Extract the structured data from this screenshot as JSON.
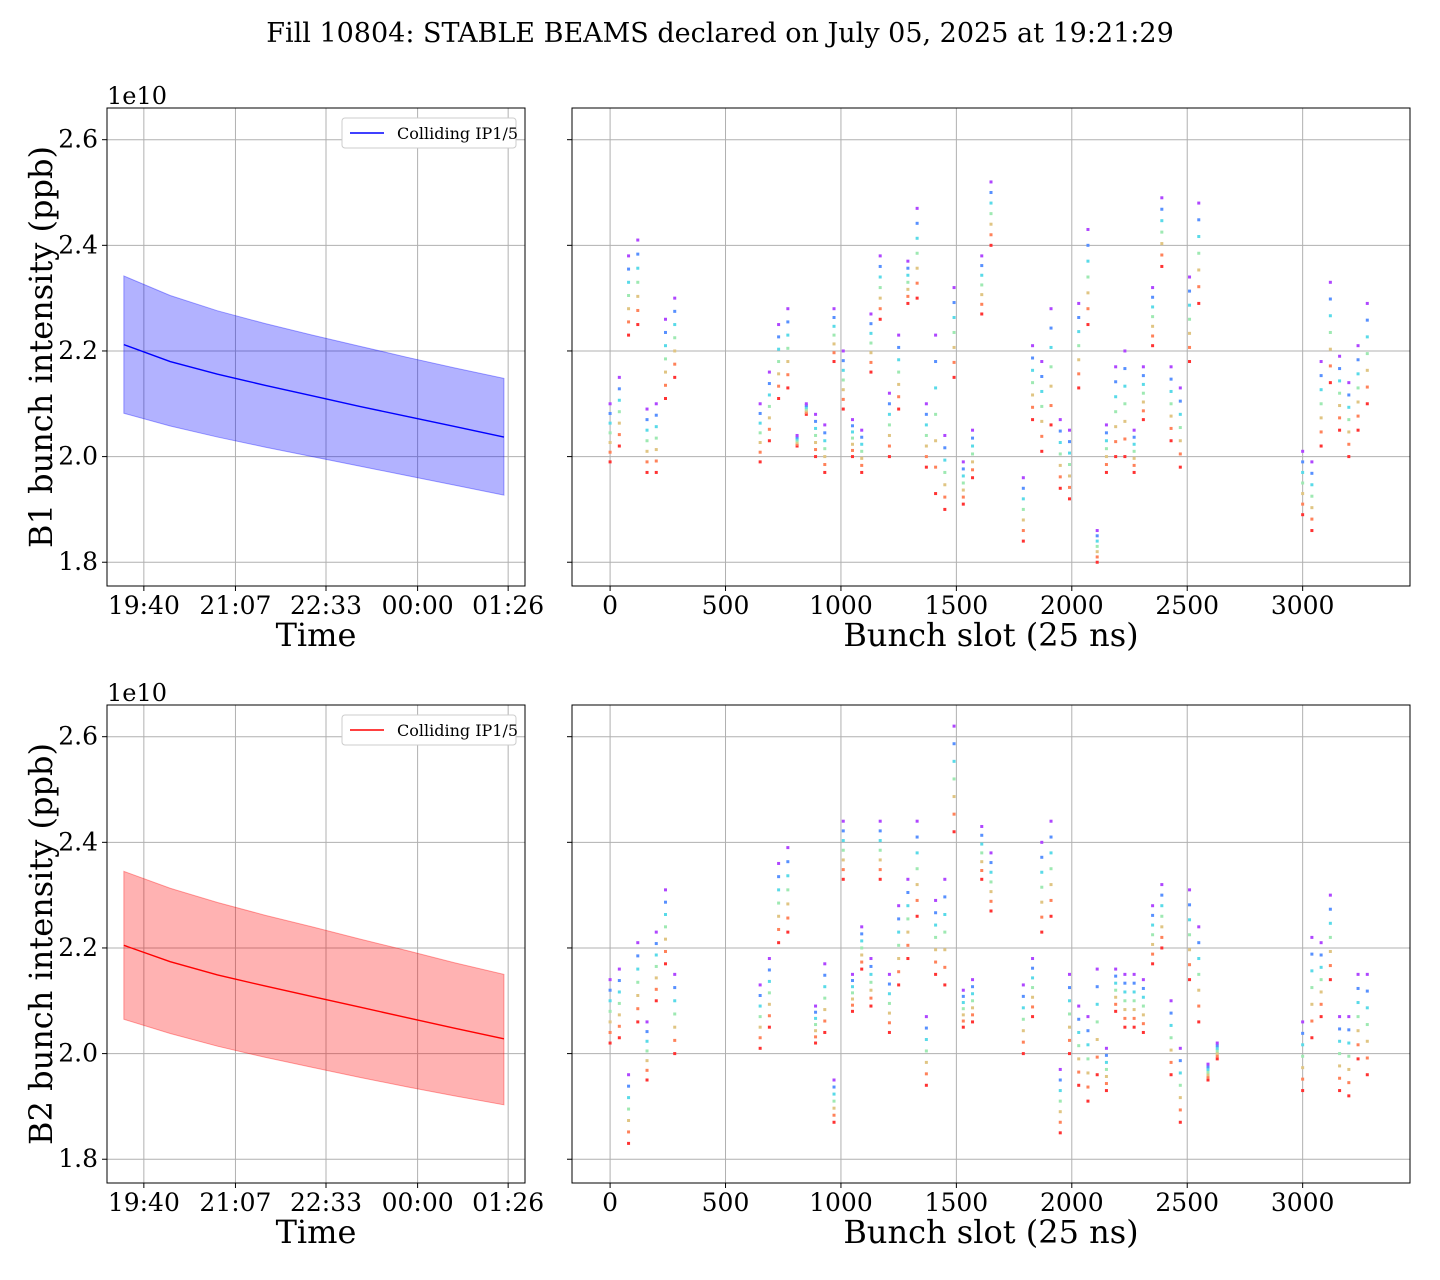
{
  "suptitle": "Fill 10804: STABLE BEAMS declared on July 05, 2025 at 19:21:29",
  "colors": {
    "b1": "#0000ff",
    "b2": "#ff0000",
    "grid": "#b0b0b0"
  },
  "chart_data": [
    {
      "type": "area",
      "id": "b1-time",
      "xlabel": "Time",
      "ylabel": "B1 bunch intensity (ppb)",
      "offset_text": "1e10",
      "ylim": [
        1.755,
        2.66
      ],
      "xlim": [
        "19:05",
        "01:42"
      ],
      "xticks": [
        "19:40",
        "21:07",
        "22:33",
        "00:00",
        "01:26"
      ],
      "yticks": [
        "1.8",
        "2.0",
        "2.2",
        "2.4",
        "2.6"
      ],
      "grid": true,
      "legend": {
        "position": "top-right",
        "entries": [
          "Colliding IP1/5"
        ]
      },
      "series": [
        {
          "name": "Colliding IP1/5",
          "color": "#0000ff",
          "x": [
            "19:21",
            "20:05",
            "20:50",
            "21:35",
            "22:20",
            "23:05",
            "23:50",
            "00:35",
            "01:22"
          ],
          "mean": [
            2.212,
            2.18,
            2.156,
            2.135,
            2.115,
            2.095,
            2.076,
            2.057,
            2.037
          ],
          "upper": [
            2.342,
            2.305,
            2.276,
            2.252,
            2.23,
            2.209,
            2.188,
            2.168,
            2.148
          ],
          "lower": [
            2.082,
            2.058,
            2.037,
            2.018,
            2.0,
            1.982,
            1.964,
            1.946,
            1.927
          ]
        }
      ]
    },
    {
      "type": "scatter",
      "id": "b1-slots",
      "xlabel": "Bunch slot (25 ns)",
      "xlim": [
        -165,
        3465
      ],
      "ylim": [
        1.755,
        2.66
      ],
      "xticks": [
        "0",
        "500",
        "1000",
        "1500",
        "2000",
        "2500",
        "3000"
      ],
      "grid": true,
      "trains": [
        [
          0,
          1.99,
          2.1
        ],
        [
          40,
          2.02,
          2.15
        ],
        [
          80,
          2.23,
          2.38
        ],
        [
          120,
          2.25,
          2.41
        ],
        [
          160,
          1.97,
          2.09
        ],
        [
          200,
          1.97,
          2.1
        ],
        [
          240,
          2.11,
          2.26
        ],
        [
          280,
          2.15,
          2.3
        ],
        [
          650,
          1.99,
          2.1
        ],
        [
          690,
          2.03,
          2.16
        ],
        [
          730,
          2.11,
          2.25
        ],
        [
          770,
          2.13,
          2.28
        ],
        [
          810,
          2.02,
          2.04
        ],
        [
          850,
          2.08,
          2.1
        ],
        [
          890,
          2.0,
          2.08
        ],
        [
          930,
          1.97,
          2.06
        ],
        [
          970,
          2.18,
          2.28
        ],
        [
          1010,
          2.09,
          2.2
        ],
        [
          1050,
          2.0,
          2.07
        ],
        [
          1090,
          1.97,
          2.05
        ],
        [
          1130,
          2.16,
          2.27
        ],
        [
          1170,
          2.26,
          2.38
        ],
        [
          1210,
          2.0,
          2.12
        ],
        [
          1250,
          2.09,
          2.23
        ],
        [
          1290,
          2.29,
          2.37
        ],
        [
          1330,
          2.3,
          2.47
        ],
        [
          1370,
          1.98,
          2.1
        ],
        [
          1410,
          1.93,
          2.23
        ],
        [
          1450,
          1.9,
          2.04
        ],
        [
          1490,
          2.15,
          2.32
        ],
        [
          1530,
          1.91,
          1.99
        ],
        [
          1570,
          1.96,
          2.05
        ],
        [
          1610,
          2.27,
          2.38
        ],
        [
          1650,
          2.4,
          2.52
        ],
        [
          1790,
          1.84,
          1.96
        ],
        [
          1830,
          2.07,
          2.21
        ],
        [
          1870,
          2.01,
          2.18
        ],
        [
          1910,
          2.06,
          2.28
        ],
        [
          1950,
          1.94,
          2.07
        ],
        [
          1990,
          1.92,
          2.05
        ],
        [
          2030,
          2.13,
          2.29
        ],
        [
          2070,
          2.25,
          2.43
        ],
        [
          2110,
          1.8,
          1.86
        ],
        [
          2150,
          1.97,
          2.06
        ],
        [
          2190,
          2.0,
          2.17
        ],
        [
          2230,
          2.0,
          2.2
        ],
        [
          2270,
          1.97,
          2.05
        ],
        [
          2310,
          2.07,
          2.17
        ],
        [
          2350,
          2.21,
          2.32
        ],
        [
          2390,
          2.36,
          2.49
        ],
        [
          2430,
          2.03,
          2.17
        ],
        [
          2470,
          1.98,
          2.13
        ],
        [
          2510,
          2.18,
          2.34
        ],
        [
          2550,
          2.29,
          2.48
        ],
        [
          3000,
          1.89,
          2.01
        ],
        [
          3040,
          1.86,
          1.99
        ],
        [
          3080,
          2.02,
          2.18
        ],
        [
          3120,
          2.14,
          2.33
        ],
        [
          3160,
          2.05,
          2.19
        ],
        [
          3200,
          2.0,
          2.14
        ],
        [
          3240,
          2.05,
          2.21
        ],
        [
          3280,
          2.1,
          2.29
        ]
      ]
    },
    {
      "type": "area",
      "id": "b2-time",
      "xlabel": "Time",
      "ylabel": "B2 bunch intensity (ppb)",
      "offset_text": "1e10",
      "ylim": [
        1.755,
        2.66
      ],
      "xlim": [
        "19:05",
        "01:42"
      ],
      "xticks": [
        "19:40",
        "21:07",
        "22:33",
        "00:00",
        "01:26"
      ],
      "yticks": [
        "1.8",
        "2.0",
        "2.2",
        "2.4",
        "2.6"
      ],
      "grid": true,
      "legend": {
        "position": "top-right",
        "entries": [
          "Colliding IP1/5"
        ]
      },
      "series": [
        {
          "name": "Colliding IP1/5",
          "color": "#ff0000",
          "x": [
            "19:21",
            "20:05",
            "20:50",
            "21:35",
            "22:20",
            "23:05",
            "23:50",
            "00:35",
            "01:22"
          ],
          "mean": [
            2.205,
            2.174,
            2.149,
            2.128,
            2.108,
            2.088,
            2.068,
            2.048,
            2.028
          ],
          "upper": [
            2.345,
            2.313,
            2.286,
            2.262,
            2.24,
            2.217,
            2.195,
            2.172,
            2.15
          ],
          "lower": [
            2.065,
            2.038,
            2.014,
            1.993,
            1.974,
            1.955,
            1.937,
            1.92,
            1.903
          ]
        }
      ]
    },
    {
      "type": "scatter",
      "id": "b2-slots",
      "xlabel": "Bunch slot (25 ns)",
      "xlim": [
        -165,
        3465
      ],
      "ylim": [
        1.755,
        2.66
      ],
      "xticks": [
        "0",
        "500",
        "1000",
        "1500",
        "2000",
        "2500",
        "3000"
      ],
      "grid": true,
      "trains": [
        [
          0,
          2.02,
          2.14
        ],
        [
          40,
          2.03,
          2.16
        ],
        [
          80,
          1.83,
          1.96
        ],
        [
          120,
          2.06,
          2.21
        ],
        [
          160,
          1.95,
          2.06
        ],
        [
          200,
          2.1,
          2.23
        ],
        [
          240,
          2.17,
          2.31
        ],
        [
          280,
          2.0,
          2.15
        ],
        [
          650,
          2.01,
          2.13
        ],
        [
          690,
          2.05,
          2.18
        ],
        [
          730,
          2.21,
          2.36
        ],
        [
          770,
          2.23,
          2.39
        ],
        [
          890,
          2.02,
          2.09
        ],
        [
          930,
          2.04,
          2.17
        ],
        [
          970,
          1.87,
          1.95
        ],
        [
          1010,
          2.33,
          2.44
        ],
        [
          1050,
          2.08,
          2.15
        ],
        [
          1090,
          2.16,
          2.24
        ],
        [
          1130,
          2.09,
          2.18
        ],
        [
          1170,
          2.33,
          2.44
        ],
        [
          1210,
          2.04,
          2.15
        ],
        [
          1250,
          2.13,
          2.28
        ],
        [
          1290,
          2.18,
          2.33
        ],
        [
          1330,
          2.26,
          2.44
        ],
        [
          1370,
          1.94,
          2.07
        ],
        [
          1410,
          2.15,
          2.29
        ],
        [
          1450,
          2.13,
          2.33
        ],
        [
          1490,
          2.42,
          2.62
        ],
        [
          1530,
          2.05,
          2.12
        ],
        [
          1570,
          2.06,
          2.14
        ],
        [
          1610,
          2.33,
          2.43
        ],
        [
          1650,
          2.27,
          2.38
        ],
        [
          1790,
          2.0,
          2.13
        ],
        [
          1830,
          2.07,
          2.18
        ],
        [
          1870,
          2.23,
          2.4
        ],
        [
          1910,
          2.26,
          2.44
        ],
        [
          1950,
          1.85,
          1.97
        ],
        [
          1990,
          2.0,
          2.15
        ],
        [
          2030,
          1.94,
          2.09
        ],
        [
          2070,
          1.91,
          2.07
        ],
        [
          2110,
          1.96,
          2.16
        ],
        [
          2150,
          1.93,
          2.01
        ],
        [
          2190,
          2.08,
          2.16
        ],
        [
          2230,
          2.05,
          2.15
        ],
        [
          2270,
          2.05,
          2.15
        ],
        [
          2310,
          2.04,
          2.14
        ],
        [
          2350,
          2.17,
          2.28
        ],
        [
          2390,
          2.2,
          2.32
        ],
        [
          2430,
          1.96,
          2.1
        ],
        [
          2470,
          1.87,
          2.01
        ],
        [
          2510,
          2.14,
          2.31
        ],
        [
          2550,
          2.06,
          2.24
        ],
        [
          2590,
          1.95,
          1.98
        ],
        [
          2630,
          1.99,
          2.02
        ],
        [
          3000,
          1.93,
          2.06
        ],
        [
          3040,
          2.03,
          2.22
        ],
        [
          3080,
          2.07,
          2.21
        ],
        [
          3120,
          2.14,
          2.3
        ],
        [
          3160,
          1.93,
          2.07
        ],
        [
          3200,
          1.92,
          2.07
        ],
        [
          3240,
          1.99,
          2.15
        ],
        [
          3280,
          1.96,
          2.15
        ]
      ]
    }
  ]
}
